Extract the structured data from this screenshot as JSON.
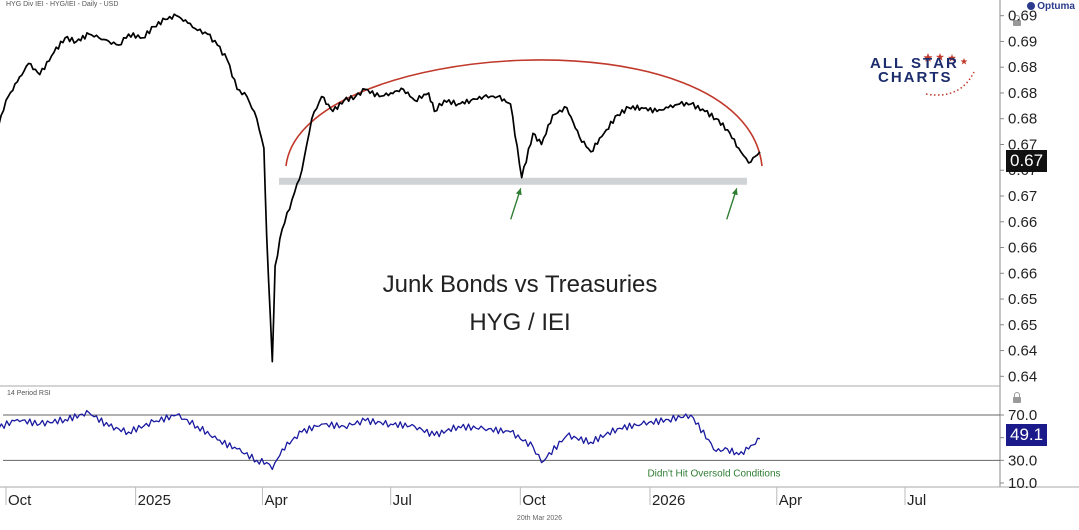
{
  "header": {
    "symbol_line": "HYG Div IEI - HYG/IEI - Daily - USD"
  },
  "brand": {
    "name": "Optuma"
  },
  "logo": {
    "line1": "ALL STAR",
    "line2": "CHARTS"
  },
  "footer": {
    "date": "20th Mar 2026"
  },
  "colors": {
    "price_line": "#000000",
    "arc": "#c0392b",
    "support_band": "#cfd3d6",
    "arrow": "#2e7d32",
    "rsi_line": "#1a1aa0",
    "rsi_bounds": "#666666",
    "annotation": "#2e7d32"
  },
  "chart_data": [
    {
      "type": "line",
      "title": "Junk Bonds vs Treasuries",
      "subtitle": "HYG / IEI",
      "series_name": "HYG/IEI",
      "x_ticks": [
        "Oct",
        "2025",
        "Apr",
        "Jul",
        "Oct",
        "2026",
        "Apr",
        "Jul"
      ],
      "y_tick_labels": [
        "0.64",
        "0.64",
        "0.65",
        "0.65",
        "0.66",
        "0.66",
        "0.66",
        "0.67",
        "0.67",
        "0.67",
        "0.68",
        "0.68",
        "0.68",
        "0.69",
        "0.69"
      ],
      "ylim": [
        0.6405,
        0.6905
      ],
      "last_value": "0.67",
      "support_level": 0.6675,
      "annotations": [],
      "x": [
        "2024-09-24",
        "2024-10-01",
        "2024-10-09",
        "2024-10-17",
        "2024-10-25",
        "2024-11-04",
        "2024-11-12",
        "2024-11-20",
        "2024-11-29",
        "2024-12-06",
        "2024-12-13",
        "2024-12-20",
        "2024-12-27",
        "2025-01-06",
        "2025-01-14",
        "2025-01-22",
        "2025-01-30",
        "2025-02-07",
        "2025-02-14",
        "2025-02-21",
        "2025-02-28",
        "2025-03-07",
        "2025-03-14",
        "2025-03-21",
        "2025-03-28",
        "2025-04-02",
        "2025-04-04",
        "2025-04-08",
        "2025-04-10",
        "2025-04-15",
        "2025-04-22",
        "2025-04-29",
        "2025-05-06",
        "2025-05-13",
        "2025-05-21",
        "2025-05-29",
        "2025-06-06",
        "2025-06-13",
        "2025-06-23",
        "2025-07-01",
        "2025-07-10",
        "2025-07-18",
        "2025-07-28",
        "2025-08-01",
        "2025-08-08",
        "2025-08-18",
        "2025-08-27",
        "2025-09-05",
        "2025-09-15",
        "2025-09-24",
        "2025-10-02",
        "2025-10-10",
        "2025-10-16",
        "2025-10-24",
        "2025-11-03",
        "2025-11-12",
        "2025-11-20",
        "2025-12-01",
        "2025-12-09",
        "2025-12-17",
        "2025-12-26",
        "2026-01-06",
        "2026-01-14",
        "2026-01-22",
        "2026-01-30",
        "2026-02-09",
        "2026-02-17",
        "2026-02-25",
        "2026-03-05",
        "2026-03-12",
        "2026-03-20"
      ],
      "y": [
        0.674,
        0.6785,
        0.681,
        0.6835,
        0.682,
        0.685,
        0.687,
        0.6865,
        0.6875,
        0.687,
        0.6865,
        0.686,
        0.6875,
        0.687,
        0.6885,
        0.6895,
        0.69,
        0.689,
        0.688,
        0.6875,
        0.686,
        0.684,
        0.68,
        0.679,
        0.676,
        0.672,
        0.66,
        0.643,
        0.656,
        0.661,
        0.665,
        0.669,
        0.676,
        0.679,
        0.677,
        0.6785,
        0.679,
        0.68,
        0.679,
        0.6795,
        0.68,
        0.6785,
        0.6795,
        0.677,
        0.6785,
        0.678,
        0.6785,
        0.679,
        0.679,
        0.678,
        0.668,
        0.674,
        0.6725,
        0.6765,
        0.6775,
        0.6735,
        0.6715,
        0.6745,
        0.6765,
        0.6775,
        0.6775,
        0.677,
        0.6775,
        0.678,
        0.678,
        0.677,
        0.676,
        0.6745,
        0.672,
        0.67,
        0.6715
      ]
    },
    {
      "type": "line",
      "title": "14 Period RSI",
      "x_ticks": [
        "Oct",
        "2025",
        "Apr",
        "Jul",
        "Oct",
        "2026",
        "Apr",
        "Jul"
      ],
      "y_tick_labels": [
        "70.0",
        "50.0",
        "30.0",
        "10.0"
      ],
      "ylim": [
        10,
        85
      ],
      "bounds": [
        70,
        30
      ],
      "last_value": "49.1",
      "annotation": "Didn't Hit Oversold Conditions",
      "x": [
        "2024-09-24",
        "2024-10-09",
        "2024-10-25",
        "2024-11-12",
        "2024-11-29",
        "2024-12-13",
        "2024-12-27",
        "2025-01-14",
        "2025-01-30",
        "2025-02-14",
        "2025-02-28",
        "2025-03-14",
        "2025-03-28",
        "2025-04-04",
        "2025-04-08",
        "2025-04-15",
        "2025-04-29",
        "2025-05-13",
        "2025-05-29",
        "2025-06-13",
        "2025-07-01",
        "2025-07-18",
        "2025-08-01",
        "2025-08-18",
        "2025-09-05",
        "2025-09-24",
        "2025-10-10",
        "2025-10-16",
        "2025-11-03",
        "2025-11-20",
        "2025-12-09",
        "2025-12-26",
        "2026-01-14",
        "2026-01-30",
        "2026-02-17",
        "2026-02-25",
        "2026-03-05",
        "2026-03-12",
        "2026-03-20"
      ],
      "y": [
        58,
        66,
        62,
        66,
        72,
        60,
        55,
        64,
        70,
        60,
        48,
        40,
        30,
        28,
        22,
        40,
        55,
        62,
        60,
        65,
        62,
        60,
        52,
        60,
        58,
        55,
        42,
        28,
        52,
        46,
        58,
        62,
        66,
        70,
        38,
        40,
        35,
        40,
        49.1
      ]
    }
  ]
}
